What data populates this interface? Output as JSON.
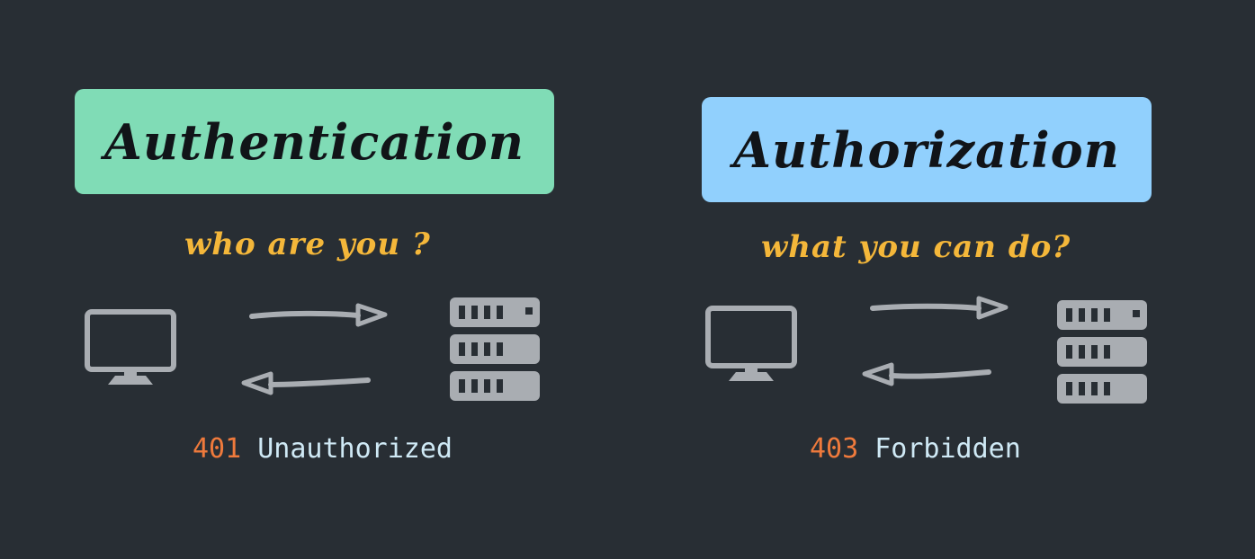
{
  "colors": {
    "background": "#282e34",
    "authentication_box": "#80dcb6",
    "authorization_box": "#91d0fd",
    "question_text": "#f4b73a",
    "status_code": "#ef7a3c",
    "status_label": "#cfe9f5",
    "icon_gray": "#a9adb2"
  },
  "authentication": {
    "title": "Authentication",
    "question": "who are you ?",
    "status_code": "401",
    "status_text": "Unauthorized"
  },
  "authorization": {
    "title": "Authorization",
    "question": "what you can do?",
    "status_code": "403",
    "status_text": "Forbidden"
  },
  "icons": [
    "monitor-icon",
    "arrow-right-icon",
    "arrow-left-icon",
    "server-icon"
  ]
}
